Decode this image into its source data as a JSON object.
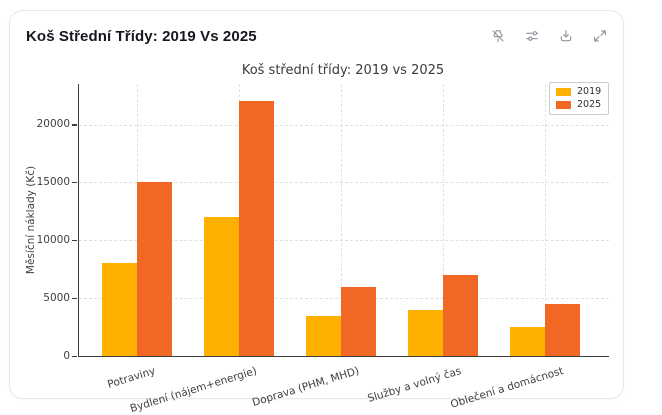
{
  "header": {
    "title": "Koš Střední Třídy: 2019 Vs 2025"
  },
  "toolbar": {
    "icons": [
      {
        "name": "pin-off"
      },
      {
        "name": "sliders"
      },
      {
        "name": "download"
      },
      {
        "name": "expand"
      }
    ]
  },
  "chart_data": {
    "type": "bar",
    "title": "Koš střední třídy: 2019 vs 2025",
    "categories": [
      "Potraviny",
      "Bydlení (nájem+energie)",
      "Doprava (PHM, MHD)",
      "Služby a volný čas",
      "Oblečení a domácnost"
    ],
    "series": [
      {
        "name": "2019",
        "color": "#FFB000",
        "values": [
          8000,
          12000,
          3500,
          4000,
          2500
        ]
      },
      {
        "name": "2025",
        "color": "#F06823",
        "values": [
          15000,
          22000,
          6000,
          7000,
          4500
        ]
      }
    ],
    "xlabel": "",
    "ylabel": "Měsíční náklady (Kč)",
    "ylim": [
      0,
      23500
    ],
    "yticks": [
      0,
      5000,
      10000,
      15000,
      20000
    ],
    "grid": true,
    "grid_style": "dashed",
    "legend_position": "top-right"
  }
}
